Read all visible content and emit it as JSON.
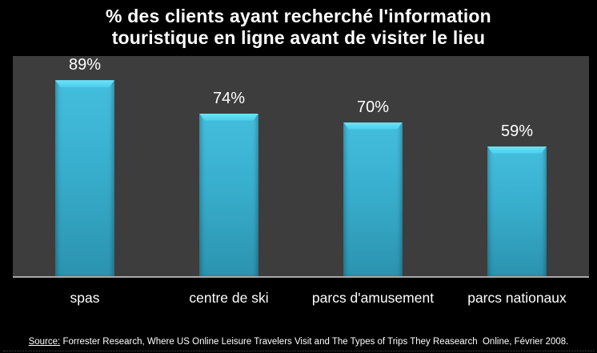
{
  "title": {
    "line1": "% des clients ayant recherché l'information",
    "line2": "touristique en ligne avant de visiter le lieu"
  },
  "chart_data": {
    "type": "bar",
    "title": "% des clients ayant recherché l'information touristique en ligne avant de visiter le lieu",
    "categories": [
      "spas",
      "centre de ski",
      "parcs d'amusement",
      "parcs nationaux"
    ],
    "values": [
      89,
      74,
      70,
      59
    ],
    "value_suffix": "%",
    "xlabel": "",
    "ylabel": "",
    "ylim": [
      0,
      100
    ],
    "grid": false,
    "legend": false,
    "plot_background": "#3d3d3d",
    "page_background": "#000000",
    "axis_line_color": "#a8a8a8",
    "bar_color_top": "#44bede",
    "bar_color_bottom": "#2b93af",
    "bar_highlight": "#6fe2f7",
    "label_color": "#ffffff"
  },
  "source": {
    "label": "Source:",
    "text": " Forrester Research, Where US Online Leisure Travelers Visit and The Types of Trips They Reasearch  Online, Février 2008."
  }
}
